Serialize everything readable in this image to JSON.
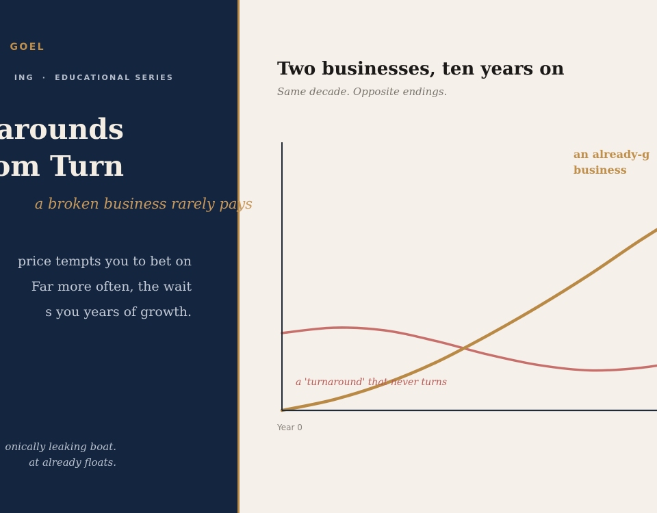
{
  "panel": {
    "brand": "GOEL",
    "series_left": "ING",
    "series_sep": "·",
    "series_right": "EDUCATIONAL SERIES",
    "headline_line1": "arounds",
    "headline_line2": "om Turn",
    "tagline": "a broken business rarely pays",
    "body_line1": "price tempts you to bet on",
    "body_line2": "Far more often, the wait",
    "body_line3": "s you years of growth.",
    "quote_line1": "onically leaking boat.",
    "quote_line2": "at already floats."
  },
  "colors": {
    "panel_bg": "#13253f",
    "accent": "#b98a45",
    "compounder": "#b98a45",
    "turnaround": "#c7706b",
    "axis": "#1c2a3a",
    "page_bg": "#f5f0ea"
  },
  "chart_data": {
    "type": "line",
    "title": "Two businesses, ten years on",
    "subtitle": "Same decade. Opposite endings.",
    "x_tick_label": "Year 0",
    "xlim": [
      0,
      10
    ],
    "ylim": [
      0,
      10
    ],
    "grid": false,
    "series": [
      {
        "key": "compounder",
        "label_line1": "an already-g",
        "label_line2": "business",
        "x": [
          0,
          1,
          2,
          3,
          4,
          5,
          6,
          7,
          8
        ],
        "values": [
          0,
          0.4,
          1.0,
          1.8,
          2.8,
          3.9,
          5.1,
          6.4,
          7.6
        ]
      },
      {
        "key": "turnaround",
        "label": "a 'turnaround' that never turns",
        "x": [
          0,
          1,
          2,
          3,
          4,
          5,
          6,
          7,
          8
        ],
        "values": [
          2.9,
          3.1,
          3.0,
          2.6,
          2.1,
          1.7,
          1.5,
          1.6,
          1.9
        ]
      }
    ]
  }
}
